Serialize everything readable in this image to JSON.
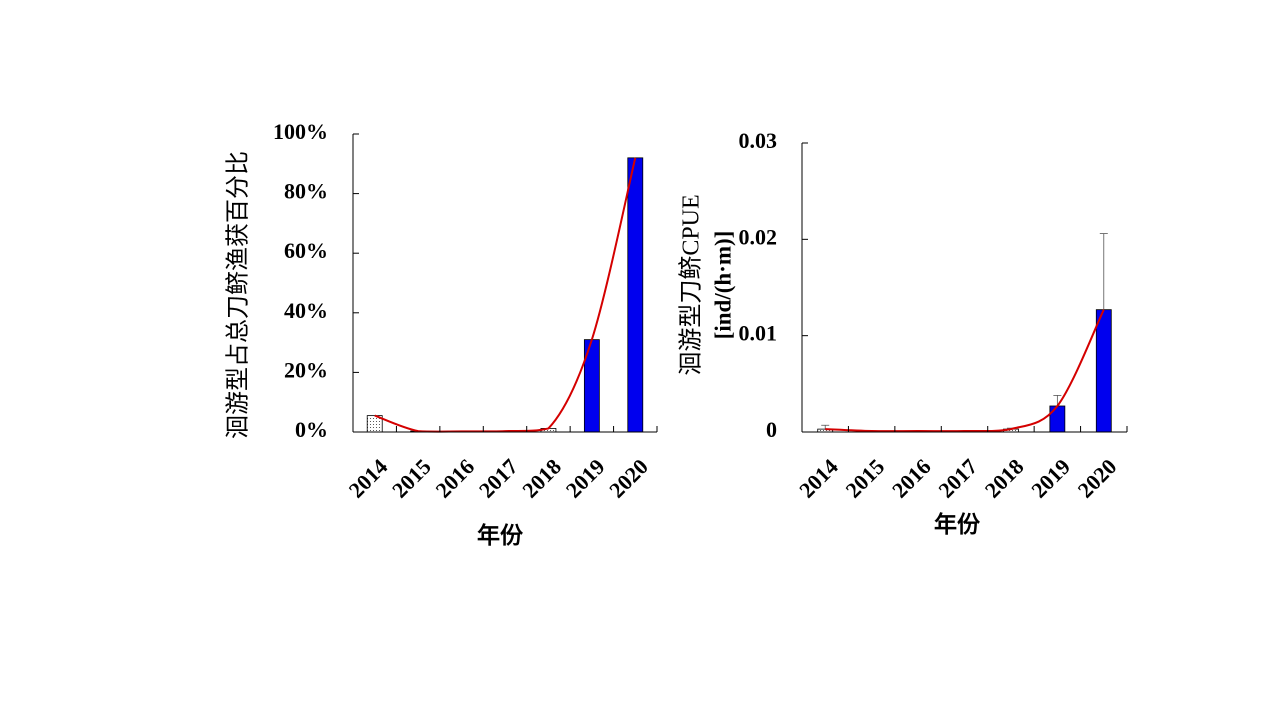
{
  "colors": {
    "bar_highlight": "#0000ee",
    "bar_dotted": "#ffffff",
    "trend": "#d40000",
    "axis": "#000000"
  },
  "chart_data": [
    {
      "type": "bar",
      "categories": [
        "2014",
        "2015",
        "2016",
        "2017",
        "2018",
        "2019",
        "2020"
      ],
      "values": [
        0.055,
        0.003,
        0.002,
        0.003,
        0.012,
        0.31,
        0.92
      ],
      "bar_fills": [
        "dotted",
        "dotted",
        "dotted",
        "dotted",
        "dotted",
        "solid",
        "solid"
      ],
      "trend_line": "exponential fit, red",
      "ylim": [
        0,
        1
      ],
      "yticks": [
        "0%",
        "20%",
        "40%",
        "60%",
        "80%",
        "100%"
      ],
      "ylabel": "洄游型占总刀鲚渔获百分比",
      "xlabel": "年份"
    },
    {
      "type": "bar",
      "categories": [
        "2014",
        "2015",
        "2016",
        "2017",
        "2018",
        "2019",
        "2020"
      ],
      "values": [
        0.0003,
        0.0001,
        0.0001,
        0.0001,
        0.0003,
        0.0027,
        0.0127
      ],
      "errors": [
        0.0004,
        0,
        0,
        0,
        0.0001,
        0.0011,
        0.0079
      ],
      "bar_fills": [
        "dotted",
        "dotted",
        "dotted",
        "dotted",
        "dotted",
        "solid",
        "solid"
      ],
      "trend_line": "exponential fit, red",
      "ylim": [
        0,
        0.03
      ],
      "yticks": [
        "0",
        "0.01",
        "0.02",
        "0.03"
      ],
      "ylabel": "洄游型刀鲚CPUE",
      "ylabel2": "[ind/(h·m)]",
      "xlabel": "年份"
    }
  ]
}
